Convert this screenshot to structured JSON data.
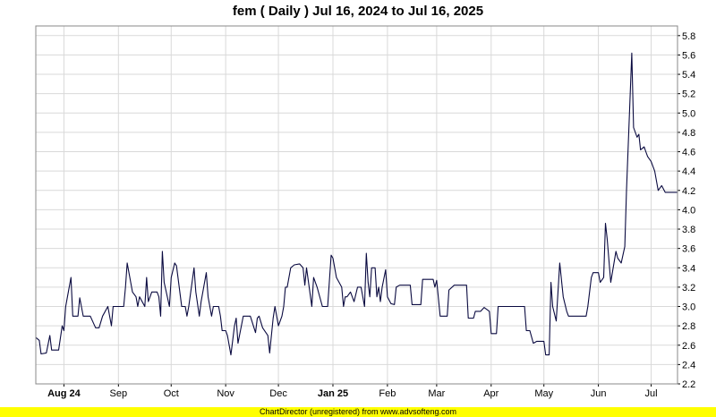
{
  "title": "fem ( Daily ) Jul 16, 2024 to Jul 16, 2025",
  "footer": "ChartDirector (unregistered) from www.advsofteng.com",
  "colors": {
    "line": "#0a0a40",
    "grid": "#d9d9d9",
    "footer_bg": "#ffff00",
    "axis": "#000000"
  },
  "chart_data": {
    "type": "line",
    "title": "fem ( Daily ) Jul 16, 2024 to Jul 16, 2025",
    "xlabel": "",
    "ylabel": "",
    "ylim": [
      2.2,
      5.9
    ],
    "y_ticks": [
      2.2,
      2.4,
      2.6,
      2.8,
      3.0,
      3.2,
      3.4,
      3.6,
      3.8,
      4.0,
      4.2,
      4.4,
      4.6,
      4.8,
      5.0,
      5.2,
      5.4,
      5.6,
      5.8
    ],
    "y_tick_labels": [
      "2.2",
      "2.4",
      "2.6",
      "2.8",
      "3.0",
      "3.2",
      "3.4",
      "3.6",
      "3.8",
      "4.0",
      "4.2",
      "4.4",
      "4.6",
      "4.8",
      "5.0",
      "5.2",
      "5.4",
      "5.6",
      "5.8"
    ],
    "x_range": [
      "2024-07-16",
      "2025-07-16"
    ],
    "x_ticks": [
      {
        "date": "2024-08-01",
        "label": "Aug 24",
        "bold": true
      },
      {
        "date": "2024-09-01",
        "label": "Sep",
        "bold": false
      },
      {
        "date": "2024-10-01",
        "label": "Oct",
        "bold": false
      },
      {
        "date": "2024-11-01",
        "label": "Nov",
        "bold": false
      },
      {
        "date": "2024-12-01",
        "label": "Dec",
        "bold": false
      },
      {
        "date": "2025-01-01",
        "label": "Jan 25",
        "bold": true
      },
      {
        "date": "2025-02-01",
        "label": "Feb",
        "bold": false
      },
      {
        "date": "2025-03-01",
        "label": "Mar",
        "bold": false
      },
      {
        "date": "2025-04-01",
        "label": "Apr",
        "bold": false
      },
      {
        "date": "2025-05-01",
        "label": "May",
        "bold": false
      },
      {
        "date": "2025-06-01",
        "label": "Jun",
        "bold": false
      },
      {
        "date": "2025-07-01",
        "label": "Jul",
        "bold": false
      }
    ],
    "grid": true,
    "series": [
      {
        "points": [
          [
            "2024-07-16",
            2.68
          ],
          [
            "2024-07-18",
            2.65
          ],
          [
            "2024-07-19",
            2.51
          ],
          [
            "2024-07-22",
            2.52
          ],
          [
            "2024-07-24",
            2.7
          ],
          [
            "2024-07-25",
            2.55
          ],
          [
            "2024-07-29",
            2.55
          ],
          [
            "2024-07-31",
            2.8
          ],
          [
            "2024-08-01",
            2.75
          ],
          [
            "2024-08-02",
            3.0
          ],
          [
            "2024-08-05",
            3.3
          ],
          [
            "2024-08-06",
            2.9
          ],
          [
            "2024-08-09",
            2.9
          ],
          [
            "2024-08-10",
            3.09
          ],
          [
            "2024-08-12",
            2.9
          ],
          [
            "2024-08-16",
            2.9
          ],
          [
            "2024-08-19",
            2.78
          ],
          [
            "2024-08-21",
            2.78
          ],
          [
            "2024-08-23",
            2.9
          ],
          [
            "2024-08-26",
            3.0
          ],
          [
            "2024-08-27",
            2.9
          ],
          [
            "2024-08-28",
            2.8
          ],
          [
            "2024-08-29",
            3.0
          ],
          [
            "2024-09-04",
            3.0
          ],
          [
            "2024-09-05",
            3.2
          ],
          [
            "2024-09-06",
            3.45
          ],
          [
            "2024-09-09",
            3.15
          ],
          [
            "2024-09-11",
            3.1
          ],
          [
            "2024-09-12",
            3.0
          ],
          [
            "2024-09-13",
            3.1
          ],
          [
            "2024-09-16",
            3.0
          ],
          [
            "2024-09-17",
            3.3
          ],
          [
            "2024-09-18",
            3.05
          ],
          [
            "2024-09-20",
            3.15
          ],
          [
            "2024-09-23",
            3.15
          ],
          [
            "2024-09-24",
            3.1
          ],
          [
            "2024-09-25",
            2.9
          ],
          [
            "2024-09-26",
            3.57
          ],
          [
            "2024-09-27",
            3.25
          ],
          [
            "2024-09-30",
            3.0
          ],
          [
            "2024-10-01",
            3.3
          ],
          [
            "2024-10-03",
            3.45
          ],
          [
            "2024-10-04",
            3.42
          ],
          [
            "2024-10-07",
            3.0
          ],
          [
            "2024-10-09",
            3.0
          ],
          [
            "2024-10-10",
            2.9
          ],
          [
            "2024-10-11",
            3.0
          ],
          [
            "2024-10-14",
            3.4
          ],
          [
            "2024-10-15",
            3.15
          ],
          [
            "2024-10-17",
            2.9
          ],
          [
            "2024-10-18",
            3.05
          ],
          [
            "2024-10-21",
            3.35
          ],
          [
            "2024-10-22",
            3.1
          ],
          [
            "2024-10-24",
            2.9
          ],
          [
            "2024-10-25",
            3.0
          ],
          [
            "2024-10-28",
            3.0
          ],
          [
            "2024-10-29",
            2.9
          ],
          [
            "2024-10-30",
            2.75
          ],
          [
            "2024-11-01",
            2.75
          ],
          [
            "2024-11-02",
            2.7
          ],
          [
            "2024-11-04",
            2.5
          ],
          [
            "2024-11-06",
            2.8
          ],
          [
            "2024-11-07",
            2.88
          ],
          [
            "2024-11-08",
            2.62
          ],
          [
            "2024-11-11",
            2.9
          ],
          [
            "2024-11-15",
            2.9
          ],
          [
            "2024-11-18",
            2.73
          ],
          [
            "2024-11-19",
            2.88
          ],
          [
            "2024-11-20",
            2.9
          ],
          [
            "2024-11-22",
            2.78
          ],
          [
            "2024-11-25",
            2.7
          ],
          [
            "2024-11-26",
            2.52
          ],
          [
            "2024-11-28",
            2.88
          ],
          [
            "2024-11-29",
            3.0
          ],
          [
            "2024-12-01",
            2.8
          ],
          [
            "2024-12-03",
            2.9
          ],
          [
            "2024-12-04",
            3.0
          ],
          [
            "2024-12-05",
            3.2
          ],
          [
            "2024-12-06",
            3.2
          ],
          [
            "2024-12-08",
            3.4
          ],
          [
            "2024-12-10",
            3.43
          ],
          [
            "2024-12-13",
            3.44
          ],
          [
            "2024-12-15",
            3.4
          ],
          [
            "2024-12-16",
            3.22
          ],
          [
            "2024-12-17",
            3.4
          ],
          [
            "2024-12-20",
            3.0
          ],
          [
            "2024-12-21",
            3.3
          ],
          [
            "2024-12-23",
            3.2
          ],
          [
            "2024-12-26",
            3.0
          ],
          [
            "2024-12-29",
            3.0
          ],
          [
            "2024-12-31",
            3.53
          ],
          [
            "2025-01-01",
            3.5
          ],
          [
            "2025-01-03",
            3.3
          ],
          [
            "2025-01-06",
            3.2
          ],
          [
            "2025-01-07",
            3.0
          ],
          [
            "2025-01-08",
            3.1
          ],
          [
            "2025-01-09",
            3.1
          ],
          [
            "2025-01-11",
            3.15
          ],
          [
            "2025-01-13",
            3.05
          ],
          [
            "2025-01-15",
            3.2
          ],
          [
            "2025-01-17",
            3.2
          ],
          [
            "2025-01-19",
            3.0
          ],
          [
            "2025-01-20",
            3.55
          ],
          [
            "2025-01-21",
            3.25
          ],
          [
            "2025-01-22",
            3.1
          ],
          [
            "2025-01-23",
            3.4
          ],
          [
            "2025-01-25",
            3.4
          ],
          [
            "2025-01-26",
            3.1
          ],
          [
            "2025-01-27",
            3.2
          ],
          [
            "2025-01-28",
            3.05
          ],
          [
            "2025-01-29",
            3.2
          ],
          [
            "2025-01-31",
            3.38
          ],
          [
            "2025-02-01",
            3.1
          ],
          [
            "2025-02-03",
            3.03
          ],
          [
            "2025-02-05",
            3.02
          ],
          [
            "2025-02-06",
            3.2
          ],
          [
            "2025-02-08",
            3.22
          ],
          [
            "2025-02-14",
            3.22
          ],
          [
            "2025-02-15",
            3.02
          ],
          [
            "2025-02-20",
            3.02
          ],
          [
            "2025-02-21",
            3.28
          ],
          [
            "2025-02-27",
            3.28
          ],
          [
            "2025-02-28",
            3.2
          ],
          [
            "2025-03-01",
            3.27
          ],
          [
            "2025-03-03",
            2.9
          ],
          [
            "2025-03-07",
            2.9
          ],
          [
            "2025-03-08",
            3.17
          ],
          [
            "2025-03-11",
            3.22
          ],
          [
            "2025-03-18",
            3.22
          ],
          [
            "2025-03-19",
            2.88
          ],
          [
            "2025-03-22",
            2.88
          ],
          [
            "2025-03-23",
            2.95
          ],
          [
            "2025-03-26",
            2.95
          ],
          [
            "2025-03-28",
            2.99
          ],
          [
            "2025-03-31",
            2.95
          ],
          [
            "2025-04-01",
            2.72
          ],
          [
            "2025-04-04",
            2.72
          ],
          [
            "2025-04-05",
            3.0
          ],
          [
            "2025-04-16",
            3.0
          ],
          [
            "2025-04-20",
            3.0
          ],
          [
            "2025-04-21",
            2.75
          ],
          [
            "2025-04-23",
            2.75
          ],
          [
            "2025-04-25",
            2.62
          ],
          [
            "2025-04-27",
            2.64
          ],
          [
            "2025-04-28",
            2.64
          ],
          [
            "2025-05-01",
            2.64
          ],
          [
            "2025-05-02",
            2.5
          ],
          [
            "2025-05-04",
            2.5
          ],
          [
            "2025-05-05",
            3.25
          ],
          [
            "2025-05-06",
            3.0
          ],
          [
            "2025-05-08",
            2.85
          ],
          [
            "2025-05-10",
            3.45
          ],
          [
            "2025-05-12",
            3.1
          ],
          [
            "2025-05-14",
            2.95
          ],
          [
            "2025-05-15",
            2.9
          ],
          [
            "2025-05-23",
            2.9
          ],
          [
            "2025-05-25",
            2.9
          ],
          [
            "2025-05-26",
            3.0
          ],
          [
            "2025-05-28",
            3.3
          ],
          [
            "2025-05-29",
            3.35
          ],
          [
            "2025-06-01",
            3.35
          ],
          [
            "2025-06-02",
            3.25
          ],
          [
            "2025-06-04",
            3.3
          ],
          [
            "2025-06-05",
            3.86
          ],
          [
            "2025-06-06",
            3.7
          ],
          [
            "2025-06-08",
            3.25
          ],
          [
            "2025-06-11",
            3.57
          ],
          [
            "2025-06-12",
            3.5
          ],
          [
            "2025-06-14",
            3.45
          ],
          [
            "2025-06-16",
            3.62
          ],
          [
            "2025-06-17",
            4.2
          ],
          [
            "2025-06-20",
            5.62
          ],
          [
            "2025-06-21",
            4.85
          ],
          [
            "2025-06-23",
            4.75
          ],
          [
            "2025-06-24",
            4.78
          ],
          [
            "2025-06-25",
            4.62
          ],
          [
            "2025-06-27",
            4.65
          ],
          [
            "2025-06-28",
            4.6
          ],
          [
            "2025-06-29",
            4.55
          ],
          [
            "2025-07-01",
            4.5
          ],
          [
            "2025-07-03",
            4.4
          ],
          [
            "2025-07-05",
            4.2
          ],
          [
            "2025-07-07",
            4.25
          ],
          [
            "2025-07-09",
            4.18
          ],
          [
            "2025-07-16",
            4.18
          ]
        ]
      }
    ]
  }
}
